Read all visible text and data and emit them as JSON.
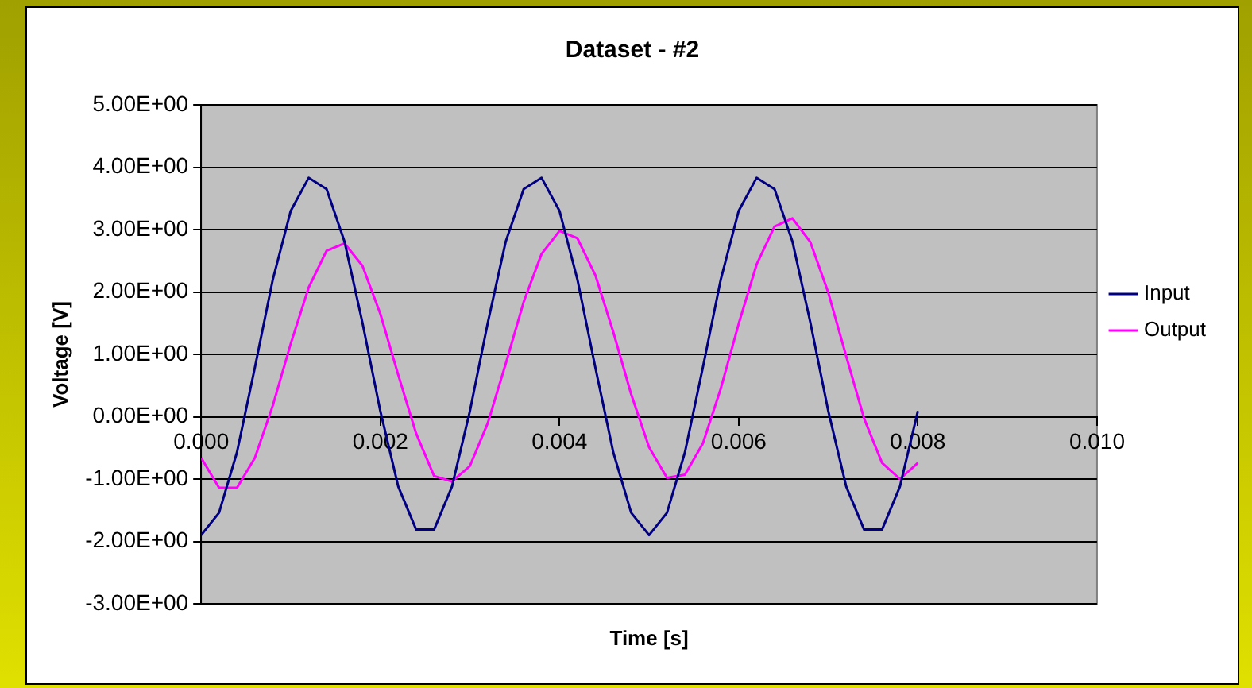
{
  "chart_data": {
    "type": "line",
    "title": "Dataset - #2",
    "xlabel": "Time [s]",
    "ylabel": "Voltage [V]",
    "x": [
      0,
      0.0002,
      0.0004,
      0.0006,
      0.0008,
      0.001,
      0.0012,
      0.0014,
      0.0016,
      0.0018,
      0.002,
      0.0022,
      0.0024,
      0.0026,
      0.0028,
      0.003,
      0.0032,
      0.0034,
      0.0036,
      0.0038,
      0.004,
      0.0042,
      0.0044,
      0.0046,
      0.0048,
      0.005,
      0.0052,
      0.0054,
      0.0056,
      0.0058,
      0.006,
      0.0062,
      0.0064,
      0.0066,
      0.0068,
      0.007,
      0.0072,
      0.0074,
      0.0076,
      0.0078,
      0.008
    ],
    "series": [
      {
        "name": "Input",
        "color": "#000080",
        "values": [
          -1.9,
          -1.54,
          -0.57,
          0.79,
          2.2,
          3.3,
          3.83,
          3.65,
          2.81,
          1.51,
          0.09,
          -1.12,
          -1.81,
          -1.81,
          -1.12,
          0.09,
          1.51,
          2.81,
          3.65,
          3.83,
          3.3,
          2.2,
          0.79,
          -0.57,
          -1.54,
          -1.9,
          -1.54,
          -0.57,
          0.79,
          2.2,
          3.3,
          3.83,
          3.65,
          2.81,
          1.51,
          0.09,
          -1.12,
          -1.81,
          -1.81,
          -1.12,
          0.09
        ]
      },
      {
        "name": "Output",
        "color": "#ff00ff",
        "values": [
          -0.66,
          -1.14,
          -1.14,
          -0.66,
          0.18,
          1.17,
          2.07,
          2.66,
          2.78,
          2.42,
          1.65,
          0.67,
          -0.27,
          -0.95,
          -1.04,
          -0.79,
          -0.1,
          0.85,
          1.84,
          2.61,
          2.98,
          2.86,
          2.27,
          1.36,
          0.36,
          -0.49,
          -0.98,
          -0.93,
          -0.43,
          0.45,
          1.49,
          2.44,
          3.05,
          3.18,
          2.8,
          1.99,
          0.97,
          -0.03,
          -0.74,
          -1.0,
          -0.74
        ]
      }
    ],
    "xlim": [
      0,
      0.01
    ],
    "xticks": [
      {
        "value": 0,
        "label": "0.000"
      },
      {
        "value": 0.002,
        "label": "0.002"
      },
      {
        "value": 0.004,
        "label": "0.004"
      },
      {
        "value": 0.006,
        "label": "0.006"
      },
      {
        "value": 0.008,
        "label": "0.008"
      },
      {
        "value": 0.01,
        "label": "0.010"
      }
    ],
    "ylim": [
      -3,
      5
    ],
    "yticks": [
      {
        "value": -3,
        "label": "-3.00E+00"
      },
      {
        "value": -2,
        "label": "-2.00E+00"
      },
      {
        "value": -1,
        "label": "-1.00E+00"
      },
      {
        "value": 0,
        "label": "0.00E+00"
      },
      {
        "value": 1,
        "label": "1.00E+00"
      },
      {
        "value": 2,
        "label": "2.00E+00"
      },
      {
        "value": 3,
        "label": "3.00E+00"
      },
      {
        "value": 4,
        "label": "4.00E+00"
      },
      {
        "value": 5,
        "label": "5.00E+00"
      }
    ],
    "grid": "y",
    "legend": "right",
    "marker": "none",
    "line_style": "solid"
  }
}
